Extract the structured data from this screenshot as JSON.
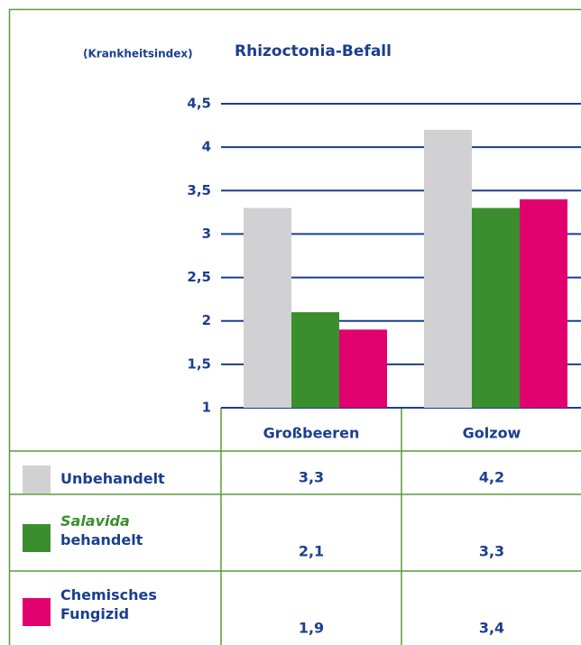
{
  "chart_data": {
    "type": "bar",
    "title": "Rhizoctonia-Befall",
    "y_label": "(Krankheitsindex)",
    "categories": [
      "Großbeeren",
      "Golzow"
    ],
    "series": [
      {
        "name": "Unbehandelt",
        "color": "#d1d1d3",
        "values": [
          3.3,
          4.2
        ],
        "value_labels": [
          "3,3",
          "4,2"
        ]
      },
      {
        "name": "Salavida behandelt",
        "color": "#3b8e2e",
        "values": [
          2.1,
          3.3
        ],
        "value_labels": [
          "2,1",
          "3,3"
        ]
      },
      {
        "name": "Chemisches Fungizid",
        "color": "#e2006f",
        "values": [
          1.9,
          3.4
        ],
        "value_labels": [
          "1,9",
          "3,4"
        ]
      }
    ],
    "ylim": [
      1,
      4.5
    ],
    "yticks": [
      1,
      {
        "value": 1.5,
        "label": "1,5"
      },
      2,
      {
        "value": 2.5,
        "label": "2,5"
      },
      3,
      {
        "value": 3.5,
        "label": "3,5"
      },
      4,
      {
        "value": 4.5,
        "label": "4,5"
      }
    ],
    "grid": true
  }
}
